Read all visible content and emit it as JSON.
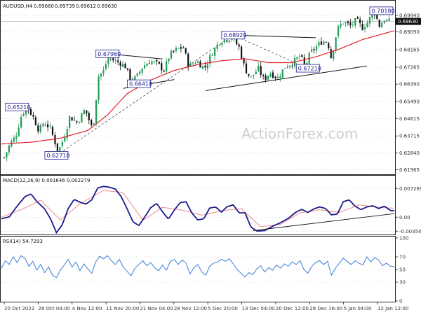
{
  "chart_data": [
    {
      "type": "candlestick",
      "title": "AUDUSD,H4",
      "ohlc_readout": [
        "0.69660",
        "0.69739",
        "0.69612",
        "0.69630"
      ],
      "last_price": "0.69630",
      "yticks": [
        "0.69940",
        "0.69090",
        "0.68165",
        "0.67265",
        "0.66390",
        "0.65490",
        "0.64615",
        "0.63715",
        "0.62840",
        "0.61965"
      ],
      "ytick_values": [
        0.6994,
        0.6909,
        0.68165,
        0.67265,
        0.6639,
        0.6549,
        0.64615,
        0.63715,
        0.6284,
        0.61965
      ],
      "ylim": [
        0.6177,
        0.7023
      ],
      "annotations": [
        {
          "text": "0.65210",
          "x": 0.04,
          "y": 0.6521
        },
        {
          "text": "0.62710",
          "x": 0.14,
          "y": 0.6271
        },
        {
          "text": "0.67960",
          "x": 0.27,
          "y": 0.6796
        },
        {
          "text": "0.66410",
          "x": 0.35,
          "y": 0.6641
        },
        {
          "text": "0.68920",
          "x": 0.59,
          "y": 0.6892
        },
        {
          "text": "0.67210",
          "x": 0.78,
          "y": 0.6721
        },
        {
          "text": "0.70180",
          "x": 0.97,
          "y": 0.7018
        }
      ],
      "trendlines": [
        {
          "x": [
            0.27,
            0.41
          ],
          "y": [
            0.6796,
            0.6769
          ]
        },
        {
          "x": [
            0.31,
            0.44
          ],
          "y": [
            0.6617,
            0.6663
          ]
        },
        {
          "x": [
            0.59,
            0.8
          ],
          "y": [
            0.6892,
            0.6879
          ]
        },
        {
          "x": [
            0.52,
            0.93
          ],
          "y": [
            0.6606,
            0.6733
          ]
        }
      ],
      "dashed_trendlines": [
        {
          "x": [
            0.14,
            0.59
          ],
          "y": [
            0.6271,
            0.6892
          ]
        },
        {
          "x": [
            0.59,
            0.78
          ],
          "y": [
            0.6892,
            0.6721
          ]
        }
      ],
      "series_close_key": [
        [
          0.0,
          0.626
        ],
        [
          0.015,
          0.633
        ],
        [
          0.03,
          0.637
        ],
        [
          0.045,
          0.648
        ],
        [
          0.06,
          0.652
        ],
        [
          0.075,
          0.647
        ],
        [
          0.09,
          0.64
        ],
        [
          0.105,
          0.644
        ],
        [
          0.12,
          0.641
        ],
        [
          0.14,
          0.629
        ],
        [
          0.155,
          0.636
        ],
        [
          0.17,
          0.647
        ],
        [
          0.19,
          0.644
        ],
        [
          0.21,
          0.651
        ],
        [
          0.23,
          0.64
        ],
        [
          0.245,
          0.668
        ],
        [
          0.26,
          0.671
        ],
        [
          0.27,
          0.679
        ],
        [
          0.285,
          0.676
        ],
        [
          0.3,
          0.675
        ],
        [
          0.315,
          0.673
        ],
        [
          0.33,
          0.665
        ],
        [
          0.345,
          0.668
        ],
        [
          0.36,
          0.673
        ],
        [
          0.38,
          0.676
        ],
        [
          0.4,
          0.674
        ],
        [
          0.415,
          0.671
        ],
        [
          0.43,
          0.679
        ],
        [
          0.45,
          0.682
        ],
        [
          0.465,
          0.683
        ],
        [
          0.48,
          0.673
        ],
        [
          0.5,
          0.676
        ],
        [
          0.52,
          0.672
        ],
        [
          0.54,
          0.68
        ],
        [
          0.56,
          0.686
        ],
        [
          0.59,
          0.688
        ],
        [
          0.61,
          0.683
        ],
        [
          0.625,
          0.672
        ],
        [
          0.64,
          0.667
        ],
        [
          0.66,
          0.672
        ],
        [
          0.675,
          0.666
        ],
        [
          0.69,
          0.67
        ],
        [
          0.71,
          0.667
        ],
        [
          0.73,
          0.673
        ],
        [
          0.75,
          0.675
        ],
        [
          0.77,
          0.679
        ],
        [
          0.78,
          0.672
        ],
        [
          0.795,
          0.68
        ],
        [
          0.81,
          0.683
        ],
        [
          0.825,
          0.686
        ],
        [
          0.84,
          0.686
        ],
        [
          0.85,
          0.677
        ],
        [
          0.865,
          0.692
        ],
        [
          0.88,
          0.696
        ],
        [
          0.9,
          0.694
        ],
        [
          0.915,
          0.697
        ],
        [
          0.93,
          0.693
        ],
        [
          0.945,
          0.696
        ],
        [
          0.96,
          0.702
        ],
        [
          0.975,
          0.694
        ],
        [
          0.985,
          0.697
        ],
        [
          1.0,
          0.6963
        ]
      ],
      "series_ma_key": [
        [
          0.0,
          0.633
        ],
        [
          0.08,
          0.634
        ],
        [
          0.15,
          0.636
        ],
        [
          0.22,
          0.64
        ],
        [
          0.27,
          0.648
        ],
        [
          0.32,
          0.659
        ],
        [
          0.38,
          0.666
        ],
        [
          0.44,
          0.671
        ],
        [
          0.5,
          0.674
        ],
        [
          0.56,
          0.676
        ],
        [
          0.62,
          0.677
        ],
        [
          0.68,
          0.675
        ],
        [
          0.74,
          0.675
        ],
        [
          0.8,
          0.678
        ],
        [
          0.86,
          0.682
        ],
        [
          0.92,
          0.687
        ],
        [
          1.0,
          0.6915
        ]
      ]
    },
    {
      "type": "line",
      "title": "MACD(12,26,9) 0.001646 0.002279",
      "yticks": [
        "0.007269",
        "0.00",
        "-0.003542"
      ],
      "ytick_values": [
        0.007269,
        0.0,
        -0.003542
      ],
      "ylim": [
        -0.0042,
        0.0082
      ],
      "series_macd_key": [
        [
          0.0,
          -0.0004
        ],
        [
          0.02,
          0.0001
        ],
        [
          0.04,
          0.0028
        ],
        [
          0.06,
          0.0052
        ],
        [
          0.075,
          0.0059
        ],
        [
          0.09,
          0.004
        ],
        [
          0.11,
          0.0021
        ],
        [
          0.125,
          -0.0004
        ],
        [
          0.14,
          -0.0039
        ],
        [
          0.155,
          -0.0019
        ],
        [
          0.17,
          0.0022
        ],
        [
          0.185,
          0.0045
        ],
        [
          0.2,
          0.0038
        ],
        [
          0.215,
          0.0033
        ],
        [
          0.23,
          0.0044
        ],
        [
          0.245,
          0.0074
        ],
        [
          0.26,
          0.0078
        ],
        [
          0.275,
          0.0076
        ],
        [
          0.29,
          0.0071
        ],
        [
          0.305,
          0.0052
        ],
        [
          0.32,
          0.0021
        ],
        [
          0.335,
          -0.0012
        ],
        [
          0.35,
          -0.0021
        ],
        [
          0.365,
          0.0001
        ],
        [
          0.38,
          0.0024
        ],
        [
          0.395,
          0.0035
        ],
        [
          0.41,
          0.0014
        ],
        [
          0.425,
          -0.0005
        ],
        [
          0.44,
          0.0018
        ],
        [
          0.455,
          0.0037
        ],
        [
          0.47,
          0.0039
        ],
        [
          0.485,
          0.001
        ],
        [
          0.5,
          -0.0007
        ],
        [
          0.515,
          -0.0004
        ],
        [
          0.53,
          0.0023
        ],
        [
          0.545,
          0.0026
        ],
        [
          0.56,
          0.0013
        ],
        [
          0.575,
          0.0027
        ],
        [
          0.59,
          0.0031
        ],
        [
          0.605,
          0.0011
        ],
        [
          0.62,
          0.0011
        ],
        [
          0.635,
          -0.0025
        ],
        [
          0.65,
          -0.0035
        ],
        [
          0.67,
          -0.0034
        ],
        [
          0.69,
          -0.0023
        ],
        [
          0.71,
          -0.0014
        ],
        [
          0.73,
          -0.0003
        ],
        [
          0.75,
          0.0013
        ],
        [
          0.765,
          0.002
        ],
        [
          0.78,
          0.0012
        ],
        [
          0.795,
          0.0021
        ],
        [
          0.81,
          0.0026
        ],
        [
          0.825,
          0.0022
        ],
        [
          0.84,
          0.0006
        ],
        [
          0.855,
          0.0008
        ],
        [
          0.87,
          0.0039
        ],
        [
          0.885,
          0.0044
        ],
        [
          0.9,
          0.0028
        ],
        [
          0.915,
          0.0019
        ],
        [
          0.93,
          0.0026
        ],
        [
          0.945,
          0.0029
        ],
        [
          0.96,
          0.0022
        ],
        [
          0.975,
          0.0028
        ],
        [
          0.99,
          0.0017
        ],
        [
          1.0,
          0.00165
        ]
      ],
      "series_signal_key": [
        [
          0.0,
          0.0
        ],
        [
          0.05,
          0.0019
        ],
        [
          0.1,
          0.0043
        ],
        [
          0.15,
          -0.0007
        ],
        [
          0.2,
          0.0034
        ],
        [
          0.26,
          0.0068
        ],
        [
          0.31,
          0.0062
        ],
        [
          0.36,
          -0.0008
        ],
        [
          0.41,
          0.0025
        ],
        [
          0.46,
          0.0018
        ],
        [
          0.51,
          0.0005
        ],
        [
          0.56,
          0.0016
        ],
        [
          0.61,
          0.0022
        ],
        [
          0.66,
          -0.0024
        ],
        [
          0.71,
          -0.0018
        ],
        [
          0.76,
          0.0011
        ],
        [
          0.81,
          0.0019
        ],
        [
          0.86,
          0.0012
        ],
        [
          0.91,
          0.0031
        ],
        [
          0.96,
          0.0025
        ],
        [
          1.0,
          0.00228
        ]
      ],
      "trendline": {
        "x": [
          0.64,
          1.0
        ],
        "y": [
          -0.0034,
          0.0009
        ]
      }
    },
    {
      "type": "line",
      "title": "RSI(14) 54.7293",
      "yticks": [
        "100",
        "70",
        "50",
        "30",
        "0"
      ],
      "ytick_values": [
        100,
        70,
        50,
        30,
        0
      ],
      "ylim": [
        0,
        100
      ],
      "series_rsi_key": [
        [
          0.0,
          52
        ],
        [
          0.01,
          64
        ],
        [
          0.02,
          58
        ],
        [
          0.03,
          70
        ],
        [
          0.04,
          61
        ],
        [
          0.05,
          72
        ],
        [
          0.06,
          68
        ],
        [
          0.07,
          55
        ],
        [
          0.08,
          63
        ],
        [
          0.09,
          49
        ],
        [
          0.1,
          58
        ],
        [
          0.11,
          45
        ],
        [
          0.12,
          54
        ],
        [
          0.13,
          41
        ],
        [
          0.14,
          37
        ],
        [
          0.15,
          49
        ],
        [
          0.16,
          57
        ],
        [
          0.17,
          66
        ],
        [
          0.18,
          54
        ],
        [
          0.19,
          62
        ],
        [
          0.2,
          48
        ],
        [
          0.21,
          59
        ],
        [
          0.22,
          51
        ],
        [
          0.23,
          44
        ],
        [
          0.24,
          62
        ],
        [
          0.25,
          71
        ],
        [
          0.26,
          67
        ],
        [
          0.27,
          72
        ],
        [
          0.28,
          64
        ],
        [
          0.29,
          58
        ],
        [
          0.3,
          66
        ],
        [
          0.31,
          54
        ],
        [
          0.32,
          47
        ],
        [
          0.33,
          40
        ],
        [
          0.34,
          52
        ],
        [
          0.35,
          58
        ],
        [
          0.36,
          64
        ],
        [
          0.37,
          56
        ],
        [
          0.38,
          61
        ],
        [
          0.39,
          53
        ],
        [
          0.4,
          48
        ],
        [
          0.41,
          57
        ],
        [
          0.42,
          49
        ],
        [
          0.43,
          63
        ],
        [
          0.44,
          66
        ],
        [
          0.45,
          58
        ],
        [
          0.46,
          65
        ],
        [
          0.47,
          60
        ],
        [
          0.48,
          43
        ],
        [
          0.49,
          53
        ],
        [
          0.5,
          58
        ],
        [
          0.51,
          46
        ],
        [
          0.52,
          41
        ],
        [
          0.53,
          55
        ],
        [
          0.54,
          60
        ],
        [
          0.55,
          62
        ],
        [
          0.56,
          66
        ],
        [
          0.57,
          63
        ],
        [
          0.58,
          67
        ],
        [
          0.59,
          59
        ],
        [
          0.6,
          50
        ],
        [
          0.61,
          44
        ],
        [
          0.62,
          38
        ],
        [
          0.63,
          45
        ],
        [
          0.64,
          42
        ],
        [
          0.65,
          51
        ],
        [
          0.66,
          56
        ],
        [
          0.67,
          46
        ],
        [
          0.68,
          53
        ],
        [
          0.69,
          49
        ],
        [
          0.7,
          57
        ],
        [
          0.71,
          52
        ],
        [
          0.72,
          59
        ],
        [
          0.73,
          55
        ],
        [
          0.74,
          62
        ],
        [
          0.75,
          58
        ],
        [
          0.76,
          64
        ],
        [
          0.77,
          50
        ],
        [
          0.78,
          44
        ],
        [
          0.79,
          55
        ],
        [
          0.8,
          61
        ],
        [
          0.81,
          64
        ],
        [
          0.82,
          58
        ],
        [
          0.83,
          63
        ],
        [
          0.84,
          41
        ],
        [
          0.85,
          52
        ],
        [
          0.86,
          60
        ],
        [
          0.87,
          68
        ],
        [
          0.88,
          63
        ],
        [
          0.89,
          58
        ],
        [
          0.9,
          64
        ],
        [
          0.91,
          60
        ],
        [
          0.92,
          57
        ],
        [
          0.93,
          70
        ],
        [
          0.94,
          62
        ],
        [
          0.95,
          69
        ],
        [
          0.96,
          65
        ],
        [
          0.97,
          56
        ],
        [
          0.98,
          60
        ],
        [
          0.99,
          55
        ],
        [
          1.0,
          54.7
        ]
      ]
    }
  ],
  "xticks": [
    "20 Oct 2022",
    "28 Oct 04:00",
    "4 Nov 12:00",
    "11 Nov 20:00",
    "21 Nov 04:00",
    "28 Nov 12:00",
    "5 Dec 20:00",
    "13 Dec 04:00",
    "20 Dec 12:00",
    "28 Dec 16:00",
    "5 Jan 04:00",
    "12 Jan 12:00"
  ],
  "watermark": "ActionForex.com",
  "colors": {
    "bull_candle": "#1f9d55",
    "bear_candle": "#111111",
    "ma": "#e0202a",
    "macd": "#1a1a8c",
    "signal": "#f08a8a",
    "rsi": "#3b7dd8",
    "annotation_border": "#1d1d8f",
    "price_tag_bg": "#111111",
    "grid": "#bfbfbf"
  }
}
